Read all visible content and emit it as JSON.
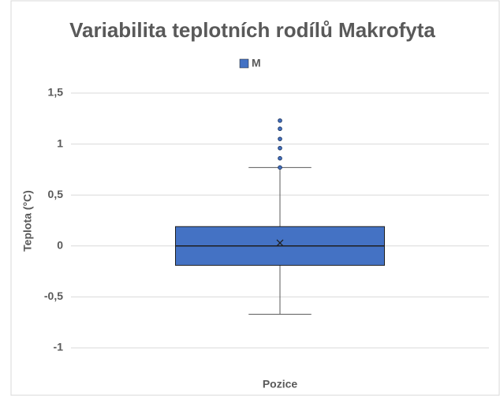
{
  "chart_data": {
    "type": "box",
    "title": "Variabilita teplotních rodílů Makrofyta",
    "y_label": "Teplota (°C)",
    "x_label": "Pozice",
    "ylim": [
      -1,
      1.5
    ],
    "yticks": [
      {
        "value": 1.5,
        "label": "1,5"
      },
      1,
      {
        "value": 0.5,
        "label": "0,5"
      },
      0,
      {
        "value": -0.5,
        "label": "-0,5"
      },
      -1
    ],
    "grid": true,
    "legend": "top",
    "series": [
      {
        "name": "M",
        "color": "#4472c4",
        "whisker_low": -0.67,
        "q1": -0.19,
        "median": 0,
        "q3": 0.19,
        "whisker_high": 0.77,
        "mean": 0.03,
        "outliers": [
          1.23,
          1.15,
          1.05,
          0.96,
          0.86,
          0.77
        ]
      }
    ]
  }
}
